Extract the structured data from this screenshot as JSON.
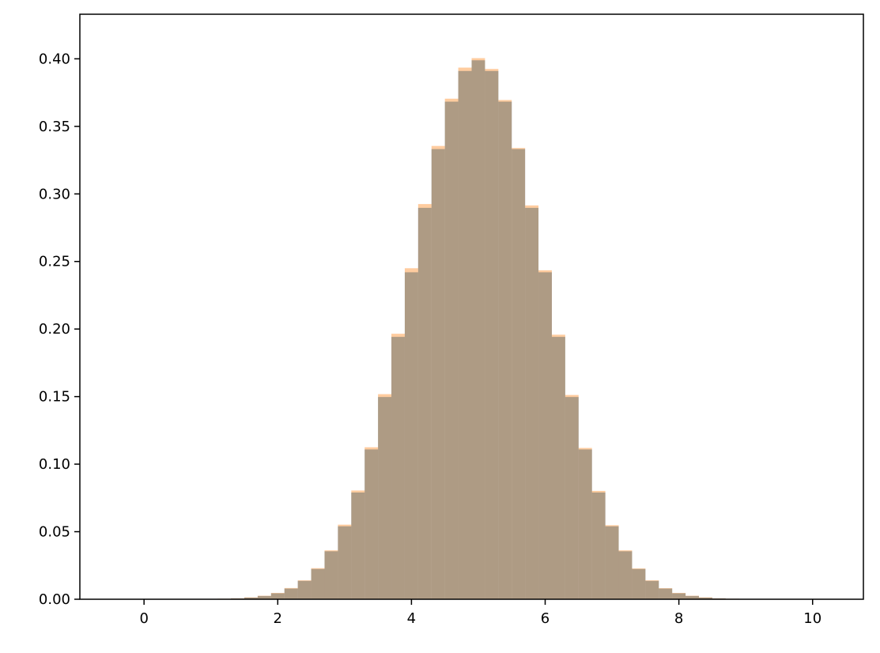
{
  "chart_data": {
    "type": "bar",
    "subtype": "overlaid-histogram",
    "title": "",
    "xlabel": "",
    "ylabel": "",
    "xlim": [
      -0.96,
      10.76
    ],
    "ylim": [
      0,
      0.433
    ],
    "grid": false,
    "bin_start": -0.5,
    "bin_width": 0.2,
    "x_ticks": [
      "0",
      "2",
      "4",
      "6",
      "8",
      "10"
    ],
    "x_tick_values": [
      0,
      2,
      4,
      6,
      8,
      10
    ],
    "y_ticks": [
      "0.00",
      "0.05",
      "0.10",
      "0.15",
      "0.20",
      "0.25",
      "0.30",
      "0.35",
      "0.40"
    ],
    "y_tick_values": [
      0,
      0.05,
      0.1,
      0.15,
      0.2,
      0.25,
      0.3,
      0.35,
      0.4
    ],
    "series": [
      {
        "color": "#1f77b4",
        "alpha": 0.6,
        "values": [
          0,
          0,
          0,
          0,
          0,
          0,
          0.0001,
          0.0001,
          0.0003,
          0.0006,
          0.0012,
          0.0024,
          0.0044,
          0.0079,
          0.0136,
          0.0224,
          0.0355,
          0.054,
          0.079,
          0.1109,
          0.1497,
          0.1942,
          0.242,
          0.2897,
          0.3332,
          0.3683,
          0.391,
          0.3989,
          0.391,
          0.3683,
          0.3332,
          0.2897,
          0.242,
          0.1942,
          0.1497,
          0.1109,
          0.079,
          0.054,
          0.0355,
          0.0224,
          0.0136,
          0.0079,
          0.0044,
          0.0024,
          0.0012,
          0.0006,
          0.0003,
          0.0001,
          0.0001,
          0,
          0,
          0,
          0,
          0
        ]
      },
      {
        "color": "#ff7f0e",
        "alpha": 0.4,
        "values": [
          0,
          0.0001,
          0.0001,
          0.0001,
          0.0001,
          0.0001,
          0.0002,
          0.0002,
          0.0004,
          0.0007,
          0.0014,
          0.0026,
          0.0047,
          0.0083,
          0.014,
          0.023,
          0.0362,
          0.0552,
          0.0805,
          0.1125,
          0.1518,
          0.1965,
          0.245,
          0.2925,
          0.3355,
          0.3705,
          0.3935,
          0.4005,
          0.3925,
          0.3695,
          0.334,
          0.2915,
          0.2435,
          0.1958,
          0.1512,
          0.112,
          0.0802,
          0.0548,
          0.0362,
          0.0228,
          0.014,
          0.0082,
          0.0047,
          0.0026,
          0.0014,
          0.0007,
          0.0004,
          0.0002,
          0.0002,
          0.0001,
          0.0001,
          0,
          0,
          0
        ]
      }
    ]
  }
}
